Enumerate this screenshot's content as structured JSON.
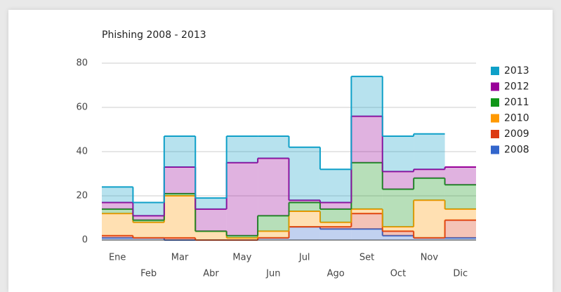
{
  "chart_data": {
    "type": "stepped-area",
    "title": "Phishing 2008 - 2013",
    "categories": [
      "Ene",
      "Feb",
      "Mar",
      "Abr",
      "May",
      "Jun",
      "Jul",
      "Ago",
      "Set",
      "Oct",
      "Nov",
      "Dic"
    ],
    "series": [
      {
        "name": "2013",
        "color": "#0fa0c8",
        "values": [
          7,
          6,
          14,
          5,
          12,
          10,
          24,
          15,
          18,
          16,
          16,
          null
        ]
      },
      {
        "name": "2012",
        "color": "#990099",
        "values": [
          3,
          2,
          12,
          10,
          33,
          26,
          1,
          3,
          21,
          8,
          4,
          8
        ]
      },
      {
        "name": "2011",
        "color": "#109618",
        "values": [
          2,
          1,
          1,
          0,
          1,
          7,
          4,
          6,
          21,
          17,
          10,
          11
        ]
      },
      {
        "name": "2010",
        "color": "#ff9900",
        "values": [
          10,
          7,
          19,
          4,
          1,
          3,
          7,
          2,
          2,
          2,
          17,
          5
        ]
      },
      {
        "name": "2009",
        "color": "#dc3912",
        "values": [
          1,
          0,
          1,
          0,
          0,
          0,
          0,
          1,
          7,
          2,
          0,
          8
        ]
      },
      {
        "name": "2008",
        "color": "#3366cc",
        "values": [
          1,
          1,
          0,
          0,
          0,
          1,
          6,
          5,
          5,
          2,
          1,
          1
        ]
      }
    ],
    "stacked": true,
    "ylim": [
      0,
      80
    ],
    "yticks": [
      0,
      20,
      40,
      60,
      80
    ],
    "grid": true,
    "legend": "right"
  }
}
